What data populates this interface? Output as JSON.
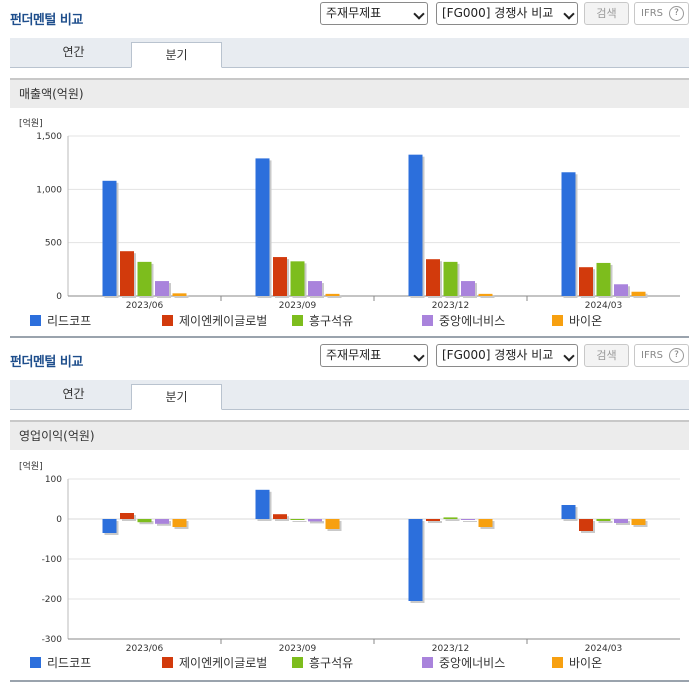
{
  "sections": [
    {
      "title": "펀더멘털 비교",
      "select_statement": "주재무제표",
      "select_compare": "[FG000] 경쟁사 비교",
      "search_label": "검색",
      "ifrs_label": "IFRS",
      "help_label": "?",
      "tabs": [
        {
          "label": "연간"
        },
        {
          "label": "분기"
        }
      ],
      "active_tab": 1,
      "subtitle": "매출액(억원)",
      "chart_data": {
        "type": "bar",
        "unit_label": "[억원]",
        "categories": [
          "2023/06",
          "2023/09",
          "2023/12",
          "2024/03"
        ],
        "ylim": [
          0,
          1500
        ],
        "yticks": [
          0,
          500,
          1000,
          1500
        ],
        "ytick_labels": [
          "0",
          "500",
          "1,000",
          "1,500"
        ],
        "grid": true,
        "legend_position": "bottom",
        "series": [
          {
            "name": "리드코프",
            "color": "#2c6fdc",
            "values": [
              1080,
              1290,
              1325,
              1160
            ]
          },
          {
            "name": "제이엔케이글로벌",
            "color": "#d23a0c",
            "values": [
              420,
              365,
              345,
              270
            ]
          },
          {
            "name": "흥구석유",
            "color": "#7dbd1d",
            "values": [
              320,
              325,
              320,
              310
            ]
          },
          {
            "name": "중앙에너비스",
            "color": "#a983dc",
            "values": [
              140,
              140,
              140,
              110
            ]
          },
          {
            "name": "바이온",
            "color": "#f7a010",
            "values": [
              25,
              20,
              20,
              40
            ]
          }
        ]
      }
    },
    {
      "title": "펀더멘털 비교",
      "select_statement": "주재무제표",
      "select_compare": "[FG000] 경쟁사 비교",
      "search_label": "검색",
      "ifrs_label": "IFRS",
      "help_label": "?",
      "tabs": [
        {
          "label": "연간"
        },
        {
          "label": "분기"
        }
      ],
      "active_tab": 1,
      "subtitle": "영업이익(억원)",
      "chart_data": {
        "type": "bar",
        "unit_label": "[억원]",
        "categories": [
          "2023/06",
          "2023/09",
          "2023/12",
          "2024/03"
        ],
        "ylim": [
          -300,
          100
        ],
        "yticks": [
          -300,
          -200,
          -100,
          0,
          100
        ],
        "ytick_labels": [
          "-300",
          "-200",
          "-100",
          "0",
          "100"
        ],
        "grid": true,
        "legend_position": "bottom",
        "series": [
          {
            "name": "리드코프",
            "color": "#2c6fdc",
            "values": [
              -35,
              73,
              -205,
              35
            ]
          },
          {
            "name": "제이엔케이글로벌",
            "color": "#d23a0c",
            "values": [
              15,
              12,
              -5,
              -30
            ]
          },
          {
            "name": "흥구석유",
            "color": "#7dbd1d",
            "values": [
              -8,
              -2,
              4,
              -5
            ]
          },
          {
            "name": "중앙에너비스",
            "color": "#a983dc",
            "values": [
              -12,
              -6,
              -2,
              -10
            ]
          },
          {
            "name": "바이온",
            "color": "#f7a010",
            "values": [
              -20,
              -25,
              -20,
              -15
            ]
          }
        ]
      }
    }
  ]
}
